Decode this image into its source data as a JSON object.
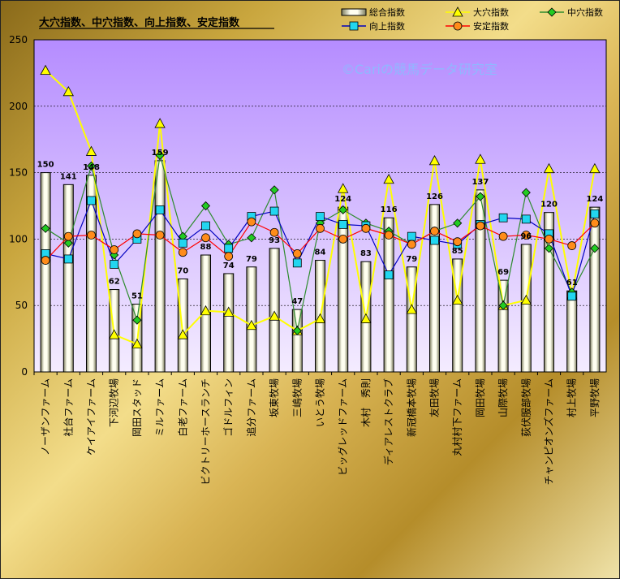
{
  "chart_data": {
    "type": "bar",
    "title": "大穴指数、中穴指数、向上指数、安定指数",
    "watermark": "©Cariの競馬データ研究室",
    "ylim": [
      0,
      250
    ],
    "yticks": [
      0,
      50,
      100,
      150,
      200,
      250
    ],
    "grid": true,
    "legend_position": "top-right",
    "categories": [
      "ノーザンファーム",
      "社台ファーム",
      "ケイアイファーム",
      "下河辺牧場",
      "岡田スタッド",
      "ミルファーム",
      "白老ファーム",
      "ビクトリーホースランチ",
      "ゴドルフィン",
      "追分ファーム",
      "坂東牧場",
      "三嶋牧場",
      "いとう牧場",
      "ビッグレッドファーム",
      "木村　秀則",
      "ディアレストクラブ",
      "新冠橋本牧場",
      "友田牧場",
      "丸村村下ファーム",
      "岡田牧場",
      "山際牧場",
      "荻伏服部牧場",
      "チャンピオンズファーム",
      "村上牧場",
      "平野牧場"
    ],
    "series": [
      {
        "name": "総合指数",
        "kind": "bar",
        "values": [
          150,
          141,
          148,
          62,
          51,
          159,
          70,
          88,
          74,
          79,
          93,
          47,
          84,
          124,
          83,
          116,
          79,
          126,
          85,
          137,
          69,
          96,
          120,
          61,
          124
        ]
      },
      {
        "name": "大穴指数",
        "kind": "line",
        "color": "#ffff00",
        "marker": "triangle",
        "values": [
          227,
          211,
          166,
          28,
          21,
          187,
          28,
          46,
          45,
          35,
          42,
          31,
          40,
          138,
          40,
          145,
          47,
          159,
          54,
          160,
          50,
          54,
          153,
          58,
          153
        ]
      },
      {
        "name": "中穴指数",
        "kind": "line",
        "color": "#2e8b2e",
        "marker": "diamond",
        "values": [
          108,
          97,
          155,
          88,
          39,
          163,
          102,
          125,
          96,
          101,
          137,
          31,
          112,
          122,
          112,
          106,
          96,
          106,
          112,
          132,
          50,
          135,
          93,
          60,
          93
        ]
      },
      {
        "name": "向上指数",
        "kind": "line",
        "color": "#0000c0",
        "marker": "square",
        "values": [
          89,
          85,
          129,
          81,
          100,
          122,
          97,
          110,
          93,
          117,
          121,
          82,
          117,
          111,
          110,
          73,
          102,
          99,
          96,
          111,
          116,
          115,
          104,
          57,
          119
        ]
      },
      {
        "name": "安定指数",
        "kind": "line",
        "color": "#ff0000",
        "marker": "circle",
        "values": [
          84,
          102,
          103,
          92,
          104,
          103,
          90,
          101,
          87,
          113,
          105,
          89,
          108,
          100,
          108,
          103,
          96,
          106,
          98,
          110,
          102,
          103,
          100,
          95,
          112
        ]
      }
    ]
  }
}
